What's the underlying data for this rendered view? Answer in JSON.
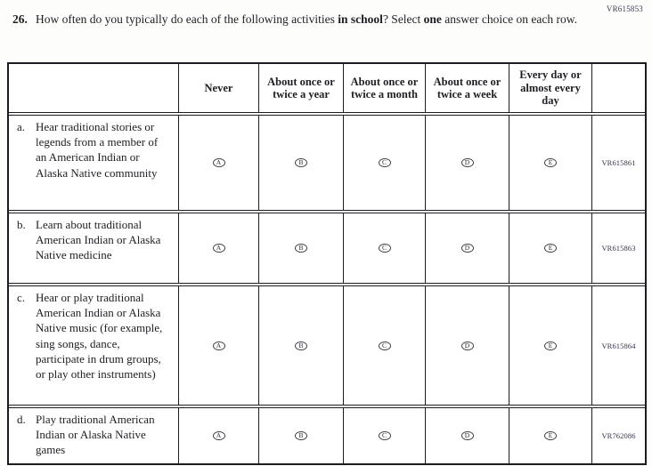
{
  "page": {
    "top_right_code": "VR615853"
  },
  "question": {
    "number": "26.",
    "seg1": "How often do you typically do each of the following activities ",
    "seg2_bold": "in school",
    "seg3": "? Select ",
    "seg4_bold": "one",
    "seg5": " answer choice on each row."
  },
  "table": {
    "columns": [
      "Never",
      "About once or twice a year",
      "About once or twice a month",
      "About once or twice a week",
      "Every day or almost every day"
    ],
    "options": [
      "A",
      "B",
      "C",
      "D",
      "E"
    ],
    "rows": [
      {
        "letter": "a.",
        "label": "Hear traditional stories or legends from a member of an American Indian or Alaska Native community",
        "code": "VR615861"
      },
      {
        "letter": "b.",
        "label": "Learn about traditional American Indian or Alaska Native medicine",
        "code": "VR615863"
      },
      {
        "letter": "c.",
        "label": "Hear or play traditional American Indian or Alaska Native music (for example, sing songs, dance, participate in drum groups, or play other instruments)",
        "code": "VR615864"
      },
      {
        "letter": "d.",
        "label": "Play traditional American Indian or Alaska Native games",
        "code": "VR762086"
      }
    ]
  },
  "colors": {
    "border": "#1c1c22",
    "text": "#1e1e24",
    "code_text": "#32324a"
  }
}
